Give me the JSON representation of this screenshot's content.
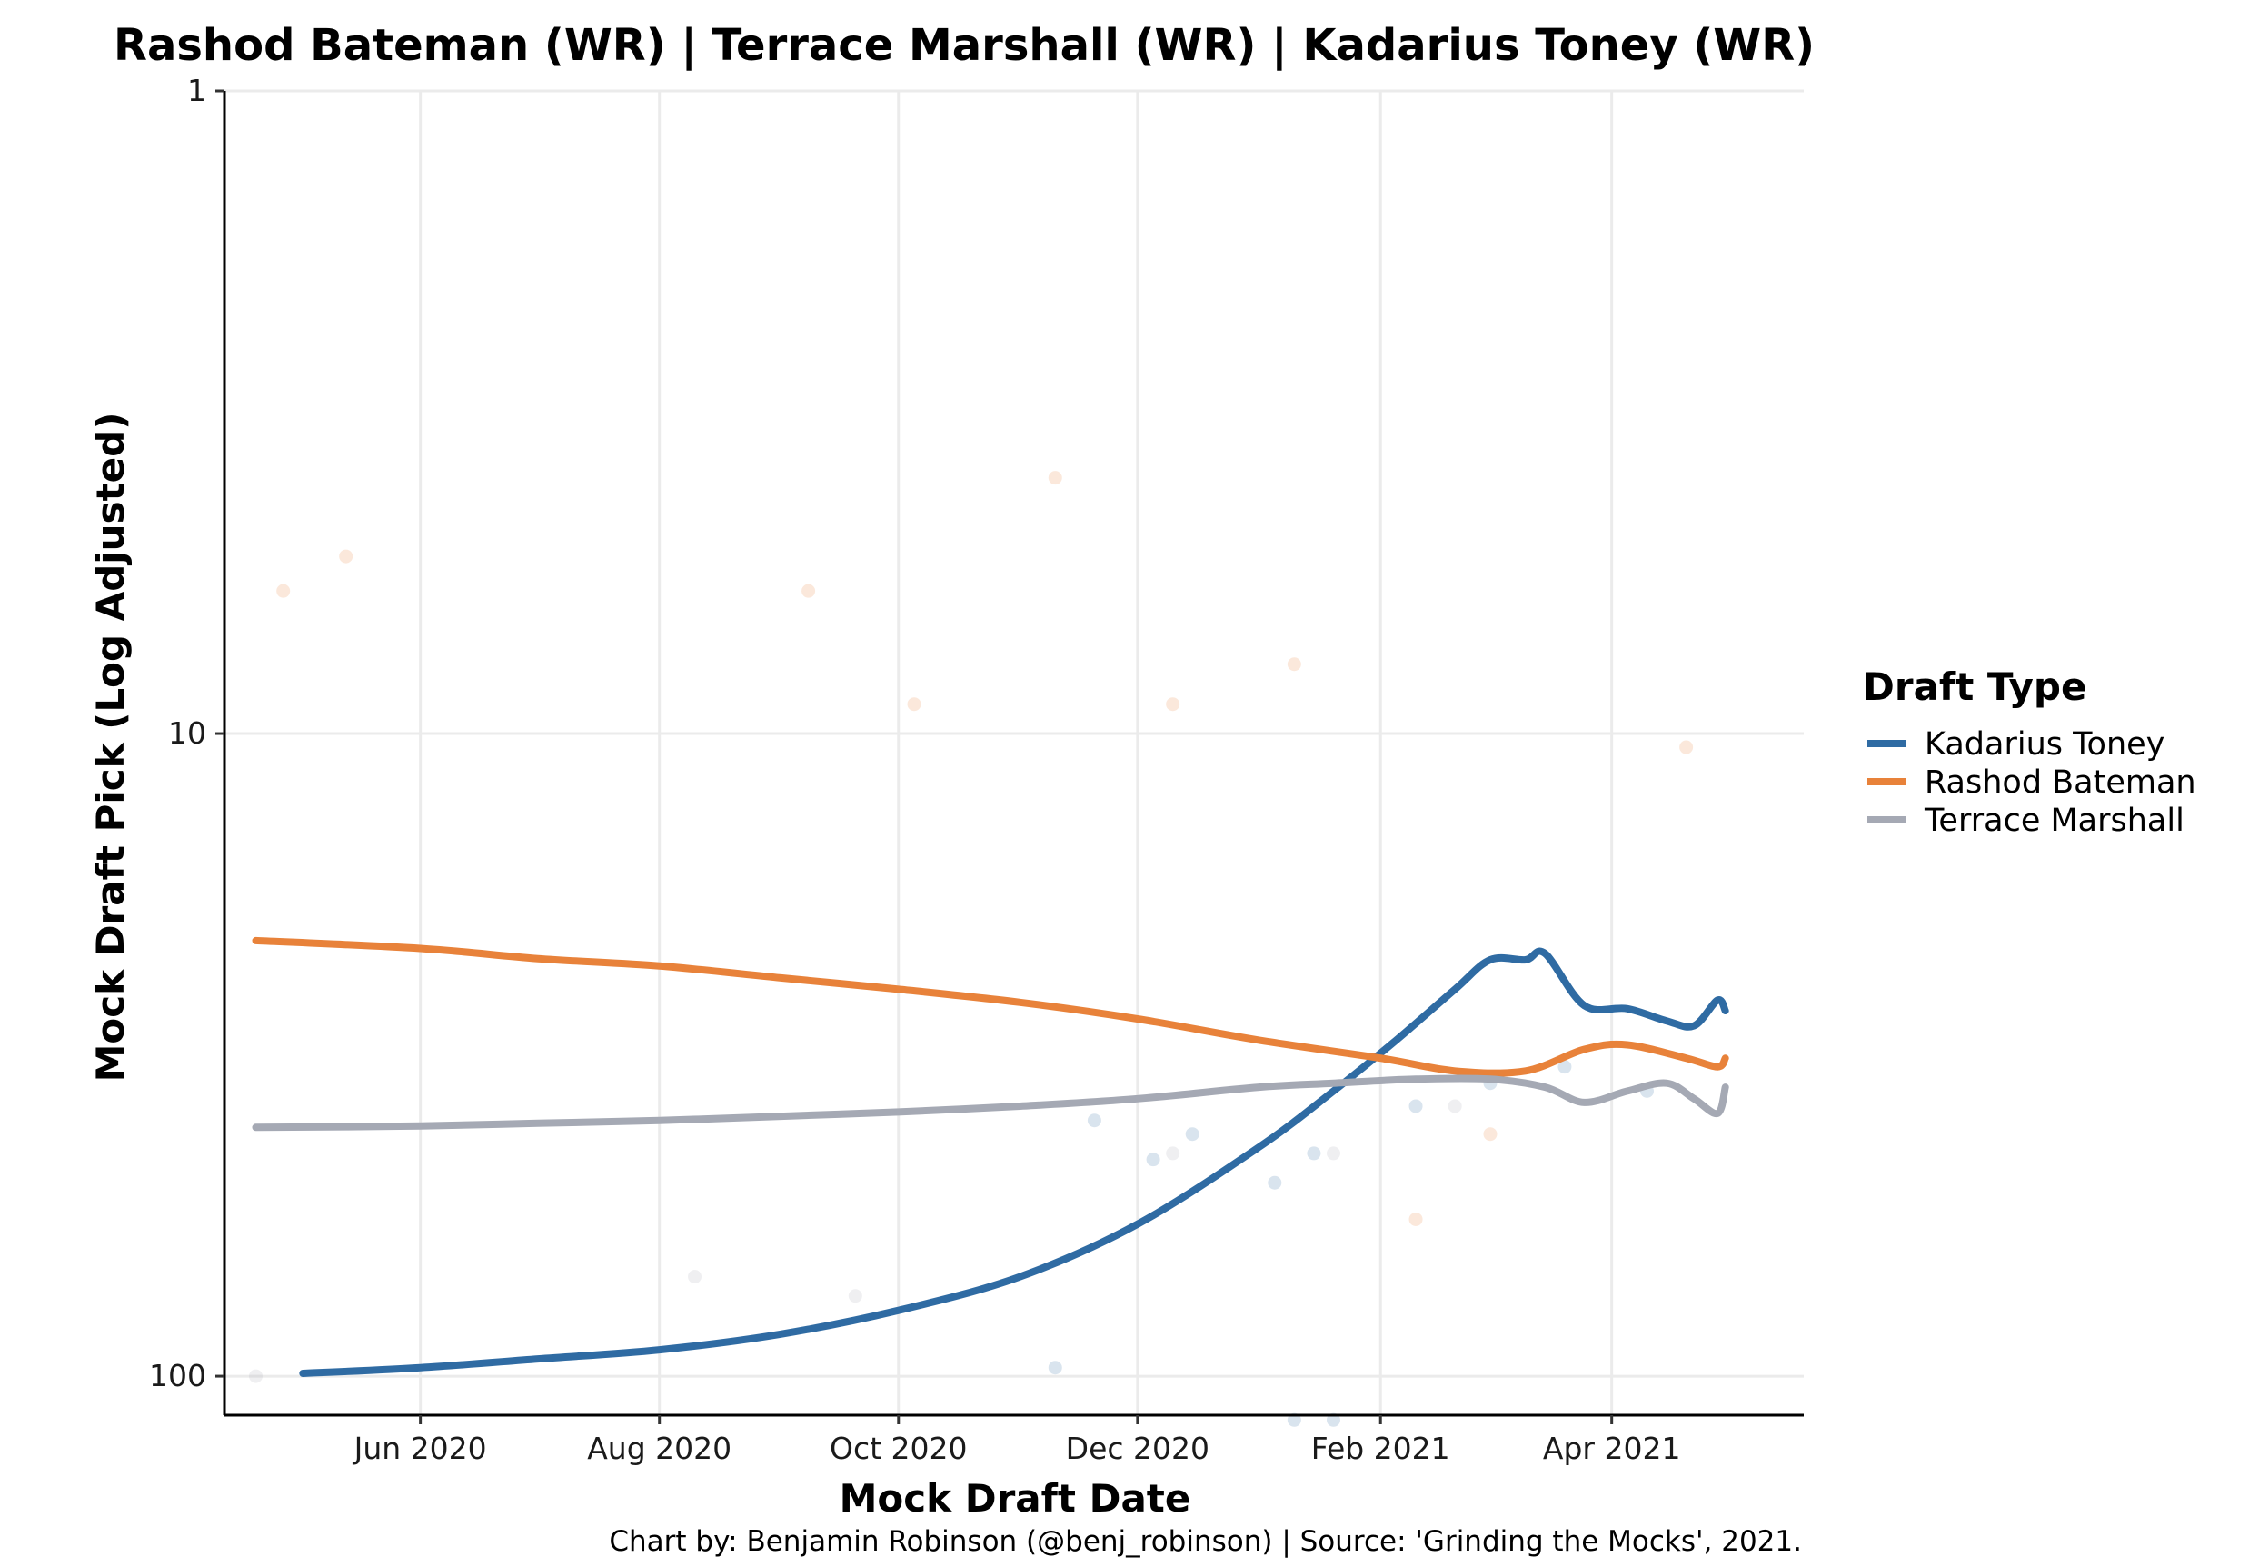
{
  "chart_data": {
    "type": "scatter",
    "title": "Rashod Bateman (WR) | Terrace Marshall (WR) | Kadarius Toney (WR)",
    "xlabel": "Mock Draft Date",
    "ylabel": "Mock Draft Pick (Log Adjusted)",
    "caption": "Chart by: Benjamin Robinson (@benj_robinson) | Source: 'Grinding the Mocks', 2021.",
    "y_scale": "log",
    "y_reversed": true,
    "ylim": [
      1,
      115
    ],
    "xlim": [
      "2020-04-12",
      "2021-05-20"
    ],
    "x_ticks": [
      {
        "date": "2020-06-01",
        "label": "Jun 2020"
      },
      {
        "date": "2020-08-01",
        "label": "Aug 2020"
      },
      {
        "date": "2020-10-01",
        "label": "Oct 2020"
      },
      {
        "date": "2020-12-01",
        "label": "Dec 2020"
      },
      {
        "date": "2021-02-01",
        "label": "Feb 2021"
      },
      {
        "date": "2021-04-01",
        "label": "Apr 2021"
      }
    ],
    "y_ticks": [
      {
        "value": 1,
        "label": "1"
      },
      {
        "value": 10,
        "label": "10"
      },
      {
        "value": 100,
        "label": "100"
      }
    ],
    "grid": true,
    "legend": {
      "title": "Draft Type",
      "position": "right"
    },
    "series": [
      {
        "name": "Kadarius Toney",
        "color": "#2f6ba3",
        "smooth": [
          [
            "2020-05-02",
            99
          ],
          [
            "2020-06-01",
            97
          ],
          [
            "2020-07-01",
            94
          ],
          [
            "2020-08-01",
            91
          ],
          [
            "2020-09-01",
            86
          ],
          [
            "2020-10-01",
            79
          ],
          [
            "2020-11-01",
            70
          ],
          [
            "2020-12-01",
            58
          ],
          [
            "2021-01-01",
            44
          ],
          [
            "2021-01-20",
            36
          ],
          [
            "2021-02-05",
            30
          ],
          [
            "2021-02-20",
            25
          ],
          [
            "2021-03-01",
            22.5
          ],
          [
            "2021-03-10",
            22.5
          ],
          [
            "2021-03-15",
            22
          ],
          [
            "2021-03-25",
            26.5
          ],
          [
            "2021-04-05",
            26.8
          ],
          [
            "2021-04-15",
            28
          ],
          [
            "2021-04-22",
            28.5
          ],
          [
            "2021-04-28",
            26
          ],
          [
            "2021-04-30",
            27
          ]
        ],
        "scatter_approx": [
          [
            "2020-11-20",
            40
          ],
          [
            "2020-12-05",
            46
          ],
          [
            "2020-12-15",
            42
          ],
          [
            "2021-01-05",
            50
          ],
          [
            "2021-01-15",
            45
          ],
          [
            "2021-02-10",
            38
          ],
          [
            "2021-03-01",
            35
          ],
          [
            "2021-03-20",
            33
          ],
          [
            "2021-04-10",
            36
          ],
          [
            "2021-01-10",
            117
          ],
          [
            "2021-01-20",
            117
          ],
          [
            "2020-11-10",
            97
          ]
        ]
      },
      {
        "name": "Rashod Bateman",
        "color": "#e8823a",
        "smooth": [
          [
            "2020-04-20",
            21
          ],
          [
            "2020-06-01",
            21.6
          ],
          [
            "2020-07-01",
            22.4
          ],
          [
            "2020-08-01",
            23
          ],
          [
            "2020-09-01",
            24
          ],
          [
            "2020-10-01",
            25
          ],
          [
            "2020-11-01",
            26.2
          ],
          [
            "2020-12-01",
            27.8
          ],
          [
            "2021-01-01",
            30
          ],
          [
            "2021-02-01",
            32
          ],
          [
            "2021-02-20",
            33.5
          ],
          [
            "2021-03-10",
            33.5
          ],
          [
            "2021-03-25",
            31
          ],
          [
            "2021-04-05",
            30.5
          ],
          [
            "2021-04-20",
            32
          ],
          [
            "2021-04-28",
            33
          ],
          [
            "2021-04-30",
            32
          ]
        ],
        "scatter_approx": [
          [
            "2020-05-13",
            5.3
          ],
          [
            "2020-04-27",
            6
          ],
          [
            "2020-09-08",
            6
          ],
          [
            "2020-11-10",
            4
          ],
          [
            "2021-01-10",
            7.8
          ],
          [
            "2020-10-05",
            9
          ],
          [
            "2020-12-10",
            9
          ],
          [
            "2021-04-20",
            10.5
          ],
          [
            "2021-03-01",
            42
          ],
          [
            "2021-02-10",
            57
          ]
        ]
      },
      {
        "name": "Terrace Marshall",
        "color": "#a5a9b4",
        "smooth": [
          [
            "2020-04-20",
            41
          ],
          [
            "2020-06-01",
            40.8
          ],
          [
            "2020-07-01",
            40.4
          ],
          [
            "2020-08-01",
            40
          ],
          [
            "2020-09-01",
            39.4
          ],
          [
            "2020-10-01",
            38.8
          ],
          [
            "2020-11-01",
            38
          ],
          [
            "2020-12-01",
            37
          ],
          [
            "2021-01-01",
            35.5
          ],
          [
            "2021-01-20",
            35
          ],
          [
            "2021-02-10",
            34.5
          ],
          [
            "2021-03-01",
            34.5
          ],
          [
            "2021-03-15",
            35.5
          ],
          [
            "2021-03-25",
            37.5
          ],
          [
            "2021-04-05",
            36
          ],
          [
            "2021-04-15",
            35
          ],
          [
            "2021-04-22",
            37
          ],
          [
            "2021-04-28",
            39
          ],
          [
            "2021-04-30",
            35.5
          ]
        ],
        "scatter_approx": [
          [
            "2020-04-20",
            100
          ],
          [
            "2020-08-10",
            70
          ],
          [
            "2020-09-20",
            75
          ],
          [
            "2020-12-10",
            45
          ],
          [
            "2021-01-20",
            45
          ],
          [
            "2021-02-20",
            38
          ]
        ]
      }
    ]
  }
}
